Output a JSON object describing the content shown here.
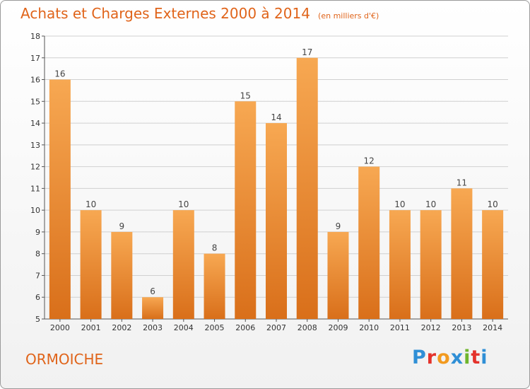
{
  "header": {
    "title": "Achats et Charges Externes 2000 à 2014",
    "subtitle": "(en milliers d'€)"
  },
  "footer": {
    "commune": "ORMOICHE",
    "logo_text": "Proxiti"
  },
  "colors": {
    "title": "#e0641a",
    "bar_top": "#f7a852",
    "bar_bottom": "#d96f1a",
    "grid": "#d0d0d0"
  },
  "chart_data": {
    "type": "bar",
    "title": "Achats et Charges Externes 2000 à 2014",
    "subtitle": "(en milliers d'€)",
    "xlabel": "",
    "ylabel": "",
    "categories": [
      "2000",
      "2001",
      "2002",
      "2003",
      "2004",
      "2005",
      "2006",
      "2007",
      "2008",
      "2009",
      "2010",
      "2011",
      "2012",
      "2013",
      "2014"
    ],
    "values": [
      16,
      10,
      9,
      6,
      10,
      8,
      15,
      14,
      17,
      9,
      12,
      10,
      10,
      11,
      10
    ],
    "ylim": [
      5,
      18
    ],
    "yticks": [
      5,
      6,
      7,
      8,
      9,
      10,
      11,
      12,
      13,
      14,
      15,
      16,
      17,
      18
    ],
    "grid": true,
    "data_labels": true
  }
}
